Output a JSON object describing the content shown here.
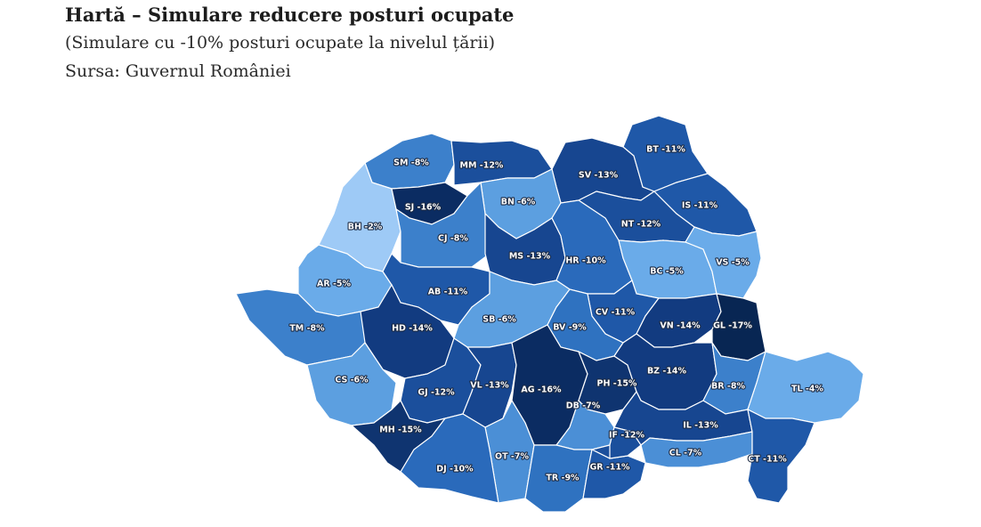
{
  "header": {
    "title": "Hartă – Simulare reducere posturi ocupate",
    "subtitle": "(Simulare cu -10% posturi ocupate la nivelul țării)",
    "source": "Sursa: Guvernul României"
  },
  "colors": {
    "scale": {
      "-2": "#9ecaf6",
      "-4": "#6aabe9",
      "-5": "#6aabe9",
      "-6": "#5c9fe0",
      "-7": "#4b8fd6",
      "-8": "#3c80cb",
      "-9": "#2f72c0",
      "-10": "#2a6abb",
      "-11": "#1f58a8",
      "-12": "#1b4f9c",
      "-13": "#174690",
      "-14": "#123b80",
      "-15": "#0f3470",
      "-16": "#0b2c62",
      "-17": "#082653"
    }
  },
  "counties": [
    {
      "code": "SM",
      "text": "SM -8%",
      "value": -8
    },
    {
      "code": "MM",
      "text": "MM -12%",
      "value": -12
    },
    {
      "code": "SV",
      "text": "SV -13%",
      "value": -13
    },
    {
      "code": "BT",
      "text": "BT -11%",
      "value": -11
    },
    {
      "code": "BH",
      "text": "BH -2%",
      "value": -2
    },
    {
      "code": "SJ",
      "text": "SJ -16%",
      "value": -16
    },
    {
      "code": "BN",
      "text": "BN -6%",
      "value": -6
    },
    {
      "code": "NT",
      "text": "NT -12%",
      "value": -12
    },
    {
      "code": "IS",
      "text": "IS -11%",
      "value": -11
    },
    {
      "code": "CJ",
      "text": "CJ -8%",
      "value": -8
    },
    {
      "code": "MS",
      "text": "MS -13%",
      "value": -13
    },
    {
      "code": "HR",
      "text": "HR -10%",
      "value": -10
    },
    {
      "code": "BC",
      "text": "BC -5%",
      "value": -5
    },
    {
      "code": "VS",
      "text": "VS -5%",
      "value": -5
    },
    {
      "code": "AR",
      "text": "AR -5%",
      "value": -5
    },
    {
      "code": "AB",
      "text": "AB -11%",
      "value": -11
    },
    {
      "code": "CV",
      "text": "CV -11%",
      "value": -11
    },
    {
      "code": "TM",
      "text": "TM -8%",
      "value": -8
    },
    {
      "code": "HD",
      "text": "HD -14%",
      "value": -14
    },
    {
      "code": "SB",
      "text": "SB -6%",
      "value": -6
    },
    {
      "code": "BV",
      "text": "BV -9%",
      "value": -9
    },
    {
      "code": "VN",
      "text": "VN -14%",
      "value": -14
    },
    {
      "code": "GL",
      "text": "GL -17%",
      "value": -17
    },
    {
      "code": "CS",
      "text": "CS -6%",
      "value": -6
    },
    {
      "code": "GJ",
      "text": "GJ -12%",
      "value": -12
    },
    {
      "code": "VL",
      "text": "VL -13%",
      "value": -13
    },
    {
      "code": "AG",
      "text": "AG -16%",
      "value": -16
    },
    {
      "code": "PH",
      "text": "PH -15%",
      "value": -15
    },
    {
      "code": "BZ",
      "text": "BZ -14%",
      "value": -14
    },
    {
      "code": "BR",
      "text": "BR -8%",
      "value": -8
    },
    {
      "code": "TL",
      "text": "TL -4%",
      "value": -4
    },
    {
      "code": "DB",
      "text": "DB -7%",
      "value": -7
    },
    {
      "code": "MH",
      "text": "MH -15%",
      "value": -15
    },
    {
      "code": "IF",
      "text": "IF -12%",
      "value": -12
    },
    {
      "code": "IL",
      "text": "IL -13%",
      "value": -13
    },
    {
      "code": "OT",
      "text": "OT -7%",
      "value": -7
    },
    {
      "code": "DJ",
      "text": "DJ -10%",
      "value": -10
    },
    {
      "code": "CL",
      "text": "CL -7%",
      "value": -7
    },
    {
      "code": "CT",
      "text": "CT -11%",
      "value": -11
    },
    {
      "code": "TR",
      "text": "TR -9%",
      "value": -9
    },
    {
      "code": "GR",
      "text": "GR -11%",
      "value": -11
    },
    {
      "code": "B",
      "text": "",
      "value": -12
    }
  ]
}
